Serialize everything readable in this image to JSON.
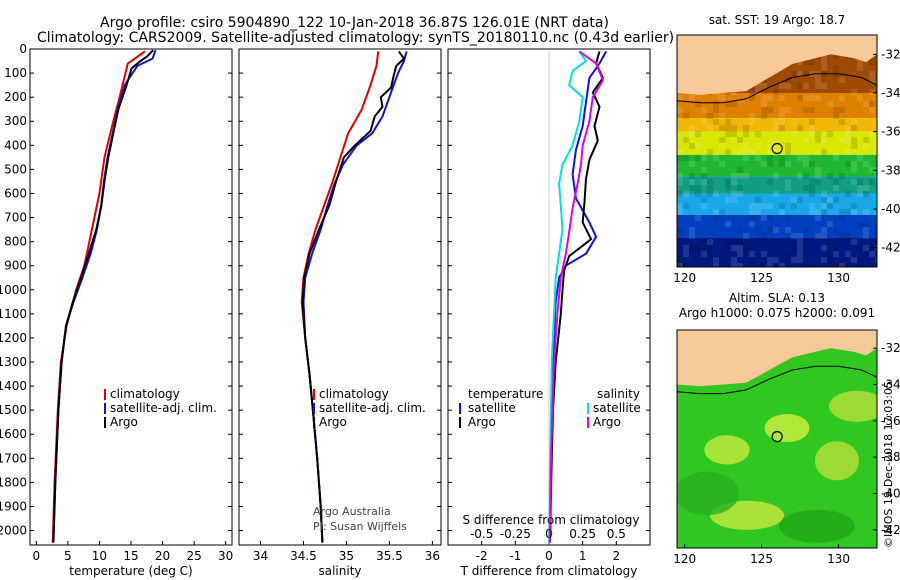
{
  "header": {
    "line1": "Argo profile: csiro 5904890_122 10-Jan-2018 36.87S 126.01E (NRT data)",
    "line2": "Climatology: CARS2009. Satellite-adjusted climatology: synTS_20180110.nc (0.43d earlier)"
  },
  "credit": {
    "line1": "Argo Australia",
    "line2": "PI: Susan Wijffels",
    "stamp": "©IMOS 19-Dec-2018 17:03:05"
  },
  "colors": {
    "argo": "#000000",
    "climatology": "#e00000",
    "satellite_clim": "#1010e0",
    "t_diff_argo": "#000000",
    "t_diff_satellite": "#1010e0",
    "s_diff_argo": "#e000e0",
    "s_diff_satellite": "#00e0e0",
    "land": "#f6c99a",
    "frame": "#000000"
  },
  "chart_data": [
    {
      "type": "line",
      "name": "temperature-profile",
      "xlabel": "temperature (deg C)",
      "ylabel": "",
      "xlim": [
        -1,
        31
      ],
      "ylim": [
        2060,
        0
      ],
      "xticks": [
        0,
        5,
        10,
        15,
        20,
        25,
        30
      ],
      "yticks": [
        0,
        100,
        200,
        300,
        400,
        500,
        600,
        700,
        800,
        900,
        1000,
        1100,
        1200,
        1300,
        1400,
        1500,
        1600,
        1700,
        1800,
        1900,
        2000
      ],
      "legend_position": "center-right",
      "series": [
        {
          "name": "climatology",
          "color_key": "climatology",
          "points": [
            [
              17.2,
              10
            ],
            [
              14.5,
              60
            ],
            [
              13.2,
              200
            ],
            [
              12.2,
              300
            ],
            [
              10.8,
              450
            ],
            [
              10.0,
              600
            ],
            [
              8.8,
              750
            ],
            [
              7.6,
              900
            ],
            [
              6.3,
              1000
            ],
            [
              4.8,
              1150
            ],
            [
              3.9,
              1300
            ],
            [
              3.4,
              1500
            ],
            [
              2.9,
              1800
            ],
            [
              2.6,
              2050
            ]
          ]
        },
        {
          "name": "satellite-adj. clim.",
          "color_key": "satellite_clim",
          "points": [
            [
              18.9,
              5
            ],
            [
              18.4,
              40
            ],
            [
              16.0,
              70
            ],
            [
              14.0,
              150
            ],
            [
              12.9,
              250
            ],
            [
              12.1,
              350
            ],
            [
              11.3,
              450
            ],
            [
              10.7,
              550
            ],
            [
              10.3,
              650
            ],
            [
              9.6,
              750
            ],
            [
              8.6,
              850
            ],
            [
              7.3,
              950
            ],
            [
              5.9,
              1050
            ],
            [
              4.7,
              1150
            ],
            [
              4.0,
              1300
            ],
            [
              3.5,
              1500
            ],
            [
              3.0,
              1800
            ],
            [
              2.7,
              2050
            ]
          ]
        },
        {
          "name": "Argo",
          "color_key": "argo",
          "points": [
            [
              18.5,
              5
            ],
            [
              17.6,
              30
            ],
            [
              16.5,
              50
            ],
            [
              15.1,
              80
            ],
            [
              14.3,
              150
            ],
            [
              13.0,
              250
            ],
            [
              12.2,
              350
            ],
            [
              11.4,
              450
            ],
            [
              10.8,
              550
            ],
            [
              10.3,
              650
            ],
            [
              9.5,
              750
            ],
            [
              8.3,
              850
            ],
            [
              7.1,
              950
            ],
            [
              5.8,
              1050
            ],
            [
              4.7,
              1150
            ],
            [
              4.0,
              1300
            ],
            [
              3.5,
              1500
            ],
            [
              3.0,
              1800
            ],
            [
              2.7,
              2050
            ]
          ]
        }
      ]
    },
    {
      "type": "line",
      "name": "salinity-profile",
      "xlabel": "salinity",
      "ylabel": "",
      "xlim": [
        33.75,
        36.1
      ],
      "ylim": [
        2060,
        0
      ],
      "xticks": [
        34,
        34.5,
        35,
        35.5,
        36
      ],
      "legend_position": "center-right",
      "series": [
        {
          "name": "climatology",
          "color_key": "climatology",
          "points": [
            [
              35.37,
              10
            ],
            [
              35.35,
              70
            ],
            [
              35.28,
              150
            ],
            [
              35.18,
              250
            ],
            [
              35.02,
              350
            ],
            [
              34.93,
              450
            ],
            [
              34.84,
              550
            ],
            [
              34.74,
              650
            ],
            [
              34.64,
              750
            ],
            [
              34.56,
              850
            ],
            [
              34.5,
              950
            ],
            [
              34.48,
              1050
            ],
            [
              34.52,
              1200
            ],
            [
              34.57,
              1350
            ],
            [
              34.61,
              1500
            ],
            [
              34.66,
              1700
            ],
            [
              34.7,
              1900
            ],
            [
              34.72,
              2050
            ]
          ]
        },
        {
          "name": "satellite-adj. clim.",
          "color_key": "satellite_clim",
          "points": [
            [
              35.7,
              10
            ],
            [
              35.67,
              50
            ],
            [
              35.6,
              100
            ],
            [
              35.52,
              180
            ],
            [
              35.42,
              280
            ],
            [
              35.3,
              350
            ],
            [
              35.12,
              400
            ],
            [
              34.96,
              480
            ],
            [
              34.86,
              560
            ],
            [
              34.78,
              650
            ],
            [
              34.7,
              750
            ],
            [
              34.6,
              850
            ],
            [
              34.52,
              950
            ],
            [
              34.5,
              1050
            ],
            [
              34.52,
              1200
            ],
            [
              34.57,
              1350
            ],
            [
              34.61,
              1500
            ],
            [
              34.66,
              1700
            ],
            [
              34.7,
              1900
            ],
            [
              34.72,
              2050
            ]
          ]
        },
        {
          "name": "Argo",
          "color_key": "argo",
          "points": [
            [
              35.61,
              10
            ],
            [
              35.67,
              40
            ],
            [
              35.58,
              70
            ],
            [
              35.55,
              110
            ],
            [
              35.52,
              160
            ],
            [
              35.4,
              200
            ],
            [
              35.42,
              240
            ],
            [
              35.33,
              280
            ],
            [
              35.28,
              340
            ],
            [
              35.1,
              400
            ],
            [
              34.97,
              450
            ],
            [
              34.88,
              550
            ],
            [
              34.8,
              650
            ],
            [
              34.68,
              750
            ],
            [
              34.57,
              850
            ],
            [
              34.51,
              950
            ],
            [
              34.49,
              1050
            ],
            [
              34.52,
              1200
            ],
            [
              34.57,
              1350
            ],
            [
              34.61,
              1500
            ],
            [
              34.66,
              1700
            ],
            [
              34.7,
              1900
            ],
            [
              34.72,
              2050
            ]
          ]
        }
      ]
    },
    {
      "type": "line",
      "name": "difference-profile",
      "xlabel": "T difference from climatology",
      "top_axis_label": "S difference from climatology",
      "xlim": [
        -3,
        3
      ],
      "ylim": [
        2060,
        0
      ],
      "xticks": [
        -2,
        -1,
        0,
        1,
        2
      ],
      "xtick_labels": [
        "-2",
        "-1",
        "0",
        "1",
        "2"
      ],
      "top_ticks": [
        -0.5,
        -0.25,
        0,
        0.25,
        0.5
      ],
      "top_tick_labels": [
        "-0.5",
        "-0.25",
        "0",
        "0.25",
        "0.5"
      ],
      "s_scale_factor": 4,
      "legend_left_title": "temperature",
      "legend_right_title": "salinity",
      "series": [
        {
          "name": "satellite",
          "group": "temperature",
          "color_key": "t_diff_satellite",
          "points": [
            [
              1.7,
              10
            ],
            [
              1.5,
              60
            ],
            [
              1.2,
              120
            ],
            [
              1.1,
              220
            ],
            [
              1.0,
              320
            ],
            [
              0.8,
              420
            ],
            [
              0.7,
              520
            ],
            [
              0.8,
              620
            ],
            [
              1.2,
              720
            ],
            [
              1.4,
              780
            ],
            [
              1.1,
              850
            ],
            [
              0.5,
              900
            ],
            [
              0.3,
              950
            ],
            [
              0.2,
              1050
            ],
            [
              0.15,
              1200
            ],
            [
              0.1,
              1400
            ],
            [
              0.08,
              1600
            ],
            [
              0.05,
              1800
            ],
            [
              0.03,
              2050
            ]
          ]
        },
        {
          "name": "Argo",
          "group": "temperature",
          "color_key": "t_diff_argo",
          "points": [
            [
              1.5,
              10
            ],
            [
              1.4,
              60
            ],
            [
              1.6,
              120
            ],
            [
              1.3,
              180
            ],
            [
              1.5,
              240
            ],
            [
              1.35,
              320
            ],
            [
              1.45,
              380
            ],
            [
              1.2,
              460
            ],
            [
              1.1,
              540
            ],
            [
              1.05,
              640
            ],
            [
              1.0,
              720
            ],
            [
              1.25,
              790
            ],
            [
              0.6,
              860
            ],
            [
              0.45,
              920
            ],
            [
              0.4,
              1000
            ],
            [
              0.35,
              1100
            ],
            [
              0.2,
              1300
            ],
            [
              0.12,
              1500
            ],
            [
              0.08,
              1700
            ],
            [
              0.05,
              1900
            ],
            [
              0.03,
              2050
            ]
          ]
        },
        {
          "name": "satellite",
          "group": "salinity",
          "color_key": "s_diff_satellite",
          "points": [
            [
              0.9,
              10
            ],
            [
              1.1,
              50
            ],
            [
              0.7,
              90
            ],
            [
              0.6,
              150
            ],
            [
              1.0,
              200
            ],
            [
              0.9,
              300
            ],
            [
              0.7,
              400
            ],
            [
              0.4,
              480
            ],
            [
              0.3,
              560
            ],
            [
              0.35,
              650
            ],
            [
              0.4,
              750
            ],
            [
              0.3,
              850
            ],
            [
              0.2,
              950
            ],
            [
              0.15,
              1100
            ],
            [
              0.08,
              1300
            ],
            [
              0.05,
              1600
            ],
            [
              0.02,
              1900
            ],
            [
              0.0,
              2050
            ]
          ]
        },
        {
          "name": "Argo",
          "group": "salinity",
          "color_key": "s_diff_argo",
          "points": [
            [
              0.9,
              10
            ],
            [
              1.4,
              60
            ],
            [
              1.6,
              130
            ],
            [
              1.3,
              200
            ],
            [
              1.2,
              300
            ],
            [
              1.0,
              400
            ],
            [
              0.95,
              480
            ],
            [
              0.85,
              560
            ],
            [
              0.7,
              660
            ],
            [
              0.6,
              760
            ],
            [
              0.5,
              850
            ],
            [
              0.35,
              950
            ],
            [
              0.25,
              1100
            ],
            [
              0.15,
              1300
            ],
            [
              0.1,
              1500
            ],
            [
              0.06,
              1700
            ],
            [
              0.02,
              2050
            ]
          ]
        }
      ]
    },
    {
      "type": "heatmap",
      "name": "sst-map",
      "title": "sat. SST: 19 Argo: 18.7",
      "xlim": [
        119.5,
        132.5
      ],
      "ylim": [
        -43,
        -31
      ],
      "xticks": [
        120,
        125,
        130
      ],
      "yticks": [
        -32,
        -34,
        -36,
        -38,
        -40,
        -42
      ],
      "float_position": {
        "lon": 126.01,
        "lat": -36.87
      },
      "color_bands": [
        {
          "lat_from": -31,
          "lat_to": -34,
          "color": "#a04a00"
        },
        {
          "lat_from": -34,
          "lat_to": -35.3,
          "color": "#e08000"
        },
        {
          "lat_from": -35.3,
          "lat_to": -36,
          "color": "#f0b800"
        },
        {
          "lat_from": -36,
          "lat_to": -37.2,
          "color": "#d8e800"
        },
        {
          "lat_from": -37.2,
          "lat_to": -38.3,
          "color": "#20b830"
        },
        {
          "lat_from": -38.3,
          "lat_to": -39.2,
          "color": "#10a080"
        },
        {
          "lat_from": -39.2,
          "lat_to": -40.3,
          "color": "#18a8e8"
        },
        {
          "lat_from": -40.3,
          "lat_to": -41.5,
          "color": "#0040c0"
        },
        {
          "lat_from": -41.5,
          "lat_to": -43,
          "color": "#001880"
        }
      ]
    },
    {
      "type": "heatmap",
      "name": "sla-map",
      "title": "Altim. SLA: 0.13",
      "subtitle": "Argo h1000: 0.075 h2000: 0.091",
      "xlim": [
        119.5,
        132.5
      ],
      "ylim": [
        -43,
        -31
      ],
      "xticks": [
        120,
        125,
        130
      ],
      "yticks": [
        -32,
        -34,
        -36,
        -38,
        -40,
        -42
      ],
      "float_position": {
        "lon": 126.01,
        "lat": -36.87
      },
      "base_color": "#30c820"
    }
  ]
}
